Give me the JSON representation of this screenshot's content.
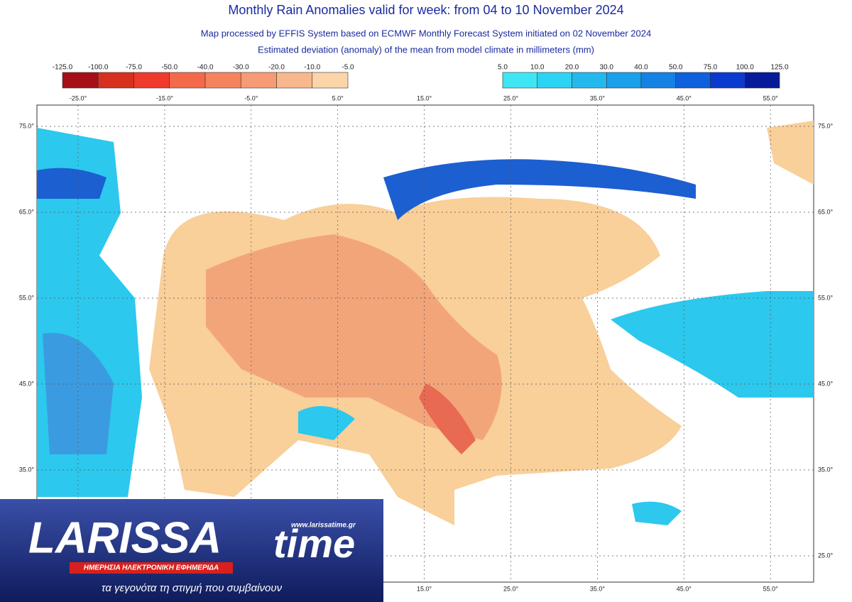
{
  "header": {
    "title": "Monthly Rain Anomalies valid for week: from 04 to 10 November 2024",
    "subtitle": "Map processed by EFFIS System based on ECMWF Monthly Forecast System initiated on 02 November 2024",
    "description": "Estimated deviation (anomaly) of the mean from model climate in millimeters (mm)"
  },
  "legend": {
    "negative": [
      "-125.0",
      "-100.0",
      "-75.0",
      "-50.0",
      "-40.0",
      "-30.0",
      "-20.0",
      "-10.0",
      "-5.0"
    ],
    "positive": [
      "5.0",
      "10.0",
      "20.0",
      "30.0",
      "40.0",
      "50.0",
      "75.0",
      "100.0",
      "125.0"
    ]
  },
  "map": {
    "top_longitudes": [
      "-25.0°",
      "-15.0°",
      "-5.0°",
      "5.0°",
      "15.0°",
      "25.0°",
      "35.0°",
      "45.0°",
      "55.0°"
    ],
    "bottom_longitudes": [
      "15.0°",
      "25.0°",
      "35.0°",
      "45.0°",
      "55.0°"
    ],
    "left_latitudes": [
      "75.0°",
      "65.0°",
      "55.0°",
      "45.0°",
      "35.0°"
    ],
    "right_latitudes": [
      "75.0°",
      "65.0°",
      "55.0°",
      "45.0°",
      "35.0°",
      "25.0°"
    ]
  },
  "logo": {
    "name": "LARISSA",
    "name_suffix": "time",
    "url": "www.larissatime.gr",
    "tagline": "ΗΜΕΡΗΣΙΑ ΗΛΕΚΤΡΟΝΙΚΗ ΕΦΗΜΕΡΙΔΑ",
    "slogan": "τα γεγονότα τη στιγμή που συμβαίνουν"
  }
}
